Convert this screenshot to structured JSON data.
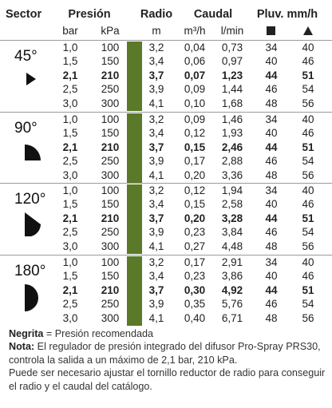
{
  "header": {
    "sector": "Sector",
    "presion": "Presión",
    "radio": "Radio",
    "caudal": "Caudal",
    "pluv": "Pluv. mm/h",
    "bar": "bar",
    "kpa": "kPa",
    "m": "m",
    "m3h": "m³/h",
    "lmin": "l/min",
    "square_icon": "square-icon",
    "triangle_icon": "triangle-icon"
  },
  "sectors": [
    {
      "label": "45°",
      "icon": "sector-45-icon",
      "rows": [
        {
          "bar": "1,0",
          "kpa": "100",
          "m": "3,2",
          "m3h": "0,04",
          "lmin": "0,73",
          "sq": "34",
          "tri": "40",
          "bold": false
        },
        {
          "bar": "1,5",
          "kpa": "150",
          "m": "3,4",
          "m3h": "0,06",
          "lmin": "0,97",
          "sq": "40",
          "tri": "46",
          "bold": false
        },
        {
          "bar": "2,1",
          "kpa": "210",
          "m": "3,7",
          "m3h": "0,07",
          "lmin": "1,23",
          "sq": "44",
          "tri": "51",
          "bold": true
        },
        {
          "bar": "2,5",
          "kpa": "250",
          "m": "3,9",
          "m3h": "0,09",
          "lmin": "1,44",
          "sq": "46",
          "tri": "54",
          "bold": false
        },
        {
          "bar": "3,0",
          "kpa": "300",
          "m": "4,1",
          "m3h": "0,10",
          "lmin": "1,68",
          "sq": "48",
          "tri": "56",
          "bold": false
        }
      ]
    },
    {
      "label": "90°",
      "icon": "sector-90-icon",
      "rows": [
        {
          "bar": "1,0",
          "kpa": "100",
          "m": "3,2",
          "m3h": "0,09",
          "lmin": "1,46",
          "sq": "34",
          "tri": "40",
          "bold": false
        },
        {
          "bar": "1,5",
          "kpa": "150",
          "m": "3,4",
          "m3h": "0,12",
          "lmin": "1,93",
          "sq": "40",
          "tri": "46",
          "bold": false
        },
        {
          "bar": "2,1",
          "kpa": "210",
          "m": "3,7",
          "m3h": "0,15",
          "lmin": "2,46",
          "sq": "44",
          "tri": "51",
          "bold": true
        },
        {
          "bar": "2,5",
          "kpa": "250",
          "m": "3,9",
          "m3h": "0,17",
          "lmin": "2,88",
          "sq": "46",
          "tri": "54",
          "bold": false
        },
        {
          "bar": "3,0",
          "kpa": "300",
          "m": "4,1",
          "m3h": "0,20",
          "lmin": "3,36",
          "sq": "48",
          "tri": "56",
          "bold": false
        }
      ]
    },
    {
      "label": "120°",
      "icon": "sector-120-icon",
      "rows": [
        {
          "bar": "1,0",
          "kpa": "100",
          "m": "3,2",
          "m3h": "0,12",
          "lmin": "1,94",
          "sq": "34",
          "tri": "40",
          "bold": false
        },
        {
          "bar": "1,5",
          "kpa": "150",
          "m": "3,4",
          "m3h": "0,15",
          "lmin": "2,58",
          "sq": "40",
          "tri": "46",
          "bold": false
        },
        {
          "bar": "2,1",
          "kpa": "210",
          "m": "3,7",
          "m3h": "0,20",
          "lmin": "3,28",
          "sq": "44",
          "tri": "51",
          "bold": true
        },
        {
          "bar": "2,5",
          "kpa": "250",
          "m": "3,9",
          "m3h": "0,23",
          "lmin": "3,84",
          "sq": "46",
          "tri": "54",
          "bold": false
        },
        {
          "bar": "3,0",
          "kpa": "300",
          "m": "4,1",
          "m3h": "0,27",
          "lmin": "4,48",
          "sq": "48",
          "tri": "56",
          "bold": false
        }
      ]
    },
    {
      "label": "180°",
      "icon": "sector-180-icon",
      "rows": [
        {
          "bar": "1,0",
          "kpa": "100",
          "m": "3,2",
          "m3h": "0,17",
          "lmin": "2,91",
          "sq": "34",
          "tri": "40",
          "bold": false
        },
        {
          "bar": "1,5",
          "kpa": "150",
          "m": "3,4",
          "m3h": "0,23",
          "lmin": "3,86",
          "sq": "40",
          "tri": "46",
          "bold": false
        },
        {
          "bar": "2,1",
          "kpa": "210",
          "m": "3,7",
          "m3h": "0,30",
          "lmin": "4,92",
          "sq": "44",
          "tri": "51",
          "bold": true
        },
        {
          "bar": "2,5",
          "kpa": "250",
          "m": "3,9",
          "m3h": "0,35",
          "lmin": "5,76",
          "sq": "46",
          "tri": "54",
          "bold": false
        },
        {
          "bar": "3,0",
          "kpa": "300",
          "m": "4,1",
          "m3h": "0,40",
          "lmin": "6,71",
          "sq": "48",
          "tri": "56",
          "bold": false
        }
      ]
    }
  ],
  "notes": {
    "negrita_label": "Negrita",
    "negrita_text": " = Presión recomendada",
    "nota_label": "Nota:",
    "nota_text": " El regulador de presión integrado del difusor Pro-Spray PRS30, controla la salida a un máximo de 2,1 bar, 210 kPa.",
    "extra_text": "Puede ser necesario ajustar el tornillo reductor de radio para conseguir el radio y el caudal del catálogo."
  },
  "colors": {
    "green_bar": "#5b7a29",
    "band_grey": "#e4e4e4",
    "divider": "#9a9a9a"
  }
}
